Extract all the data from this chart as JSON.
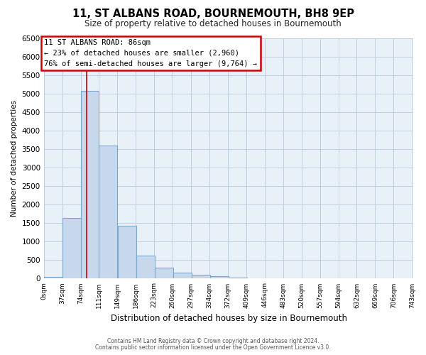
{
  "title": "11, ST ALBANS ROAD, BOURNEMOUTH, BH8 9EP",
  "subtitle": "Size of property relative to detached houses in Bournemouth",
  "bar_heights": [
    50,
    1650,
    5080,
    3600,
    1420,
    620,
    300,
    155,
    100,
    60,
    30,
    15,
    10,
    5,
    5,
    5,
    5,
    5,
    5
  ],
  "bin_edges": [
    0,
    37,
    74,
    111,
    149,
    186,
    223,
    260,
    297,
    334,
    372,
    409,
    446,
    483,
    520,
    557,
    594,
    632,
    669
  ],
  "xtick_labels": [
    "0sqm",
    "37sqm",
    "74sqm",
    "111sqm",
    "149sqm",
    "186sqm",
    "223sqm",
    "260sqm",
    "297sqm",
    "334sqm",
    "372sqm",
    "409sqm",
    "446sqm",
    "483sqm",
    "520sqm",
    "557sqm",
    "594sqm",
    "632sqm",
    "669sqm",
    "706sqm",
    "743sqm"
  ],
  "ylabel": "Number of detached properties",
  "xlabel": "Distribution of detached houses by size in Bournemouth",
  "ylim": [
    0,
    6500
  ],
  "yticks": [
    0,
    500,
    1000,
    1500,
    2000,
    2500,
    3000,
    3500,
    4000,
    4500,
    5000,
    5500,
    6000,
    6500
  ],
  "bar_color": "#c8d8ec",
  "bar_edge_color": "#7aa8cc",
  "red_line_x": 86,
  "annotation_title": "11 ST ALBANS ROAD: 86sqm",
  "annotation_line1": "← 23% of detached houses are smaller (2,960)",
  "annotation_line2": "76% of semi-detached houses are larger (9,764) →",
  "annotation_box_color": "#ffffff",
  "annotation_box_edge": "#cc0000",
  "grid_color": "#c0d0e0",
  "plot_bg_color": "#e8f0f8",
  "fig_bg_color": "#ffffff",
  "footer1": "Contains HM Land Registry data © Crown copyright and database right 2024.",
  "footer2": "Contains public sector information licensed under the Open Government Licence v3.0."
}
